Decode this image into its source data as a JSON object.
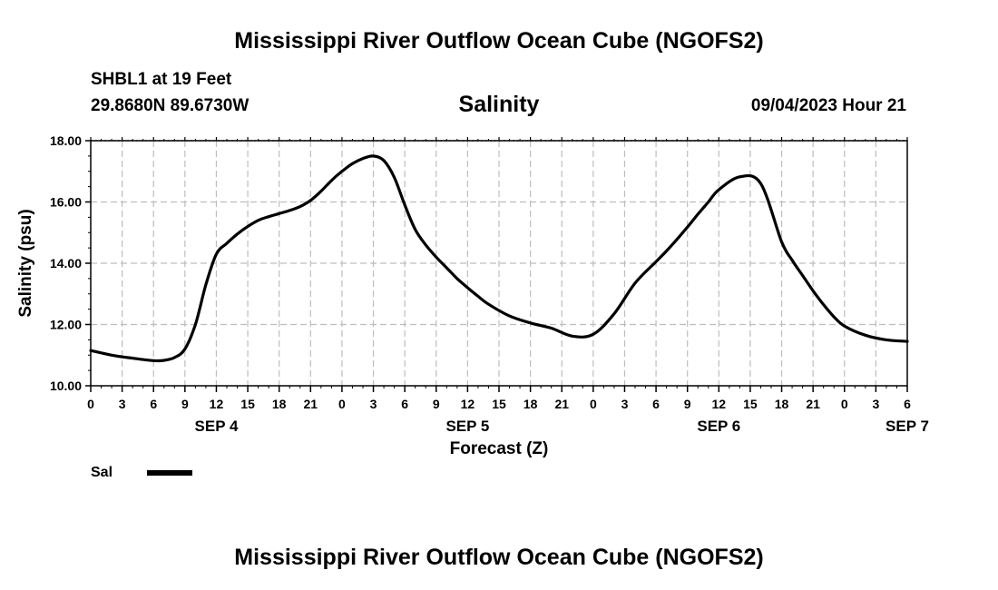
{
  "header": {
    "title": "Mississippi River Outflow Ocean Cube (NGOFS2)",
    "station": "SHBL1 at 19 Feet",
    "coords": "29.8680N  89.6730W",
    "subtitle": "Salinity",
    "datetime": "09/04/2023 Hour 21"
  },
  "footer": {
    "title": "Mississippi River Outflow Ocean Cube (NGOFS2)"
  },
  "chart_data": {
    "type": "line",
    "title": "Salinity",
    "xlabel": "Forecast (Z)",
    "ylabel": "Salinity (psu)",
    "ylim": [
      10,
      18
    ],
    "xlim": [
      0,
      78
    ],
    "x_unit": "hours from 09/04 00Z",
    "y_tick_labels": [
      "10.00",
      "12.00",
      "14.00",
      "16.00",
      "18.00"
    ],
    "x_tick_labels": [
      "0",
      "3",
      "6",
      "9",
      "12",
      "15",
      "18",
      "21",
      "0",
      "3",
      "6",
      "9",
      "12",
      "15",
      "18",
      "21",
      "0",
      "3",
      "6",
      "9",
      "12",
      "15",
      "18",
      "21",
      "0",
      "3",
      "6"
    ],
    "day_labels": [
      {
        "label": "SEP 4",
        "hour": 12
      },
      {
        "label": "SEP 5",
        "hour": 36
      },
      {
        "label": "SEP 6",
        "hour": 60
      },
      {
        "label": "SEP 7",
        "hour": 78
      }
    ],
    "grid": true,
    "legend": [
      {
        "name": "Sal",
        "color": "#000000"
      }
    ],
    "series": [
      {
        "name": "Sal",
        "x": [
          0,
          2,
          4,
          6,
          7,
          8,
          9,
          10,
          11,
          12,
          13,
          14,
          15,
          16,
          17,
          18,
          19,
          20,
          21,
          22,
          23,
          24,
          25,
          26,
          27,
          28,
          29,
          30,
          31,
          32,
          33,
          34,
          35,
          36,
          37,
          38,
          40,
          42,
          44,
          46,
          48,
          50,
          52,
          54,
          55,
          56,
          57,
          58,
          59,
          60,
          62,
          64,
          66,
          67,
          68,
          69,
          70,
          71,
          72,
          74,
          76,
          78
        ],
        "y": [
          11.15,
          11.0,
          10.9,
          10.82,
          10.83,
          10.92,
          11.2,
          12.0,
          13.3,
          14.3,
          14.65,
          14.95,
          15.2,
          15.4,
          15.52,
          15.62,
          15.72,
          15.85,
          16.05,
          16.35,
          16.7,
          17.0,
          17.25,
          17.42,
          17.5,
          17.35,
          16.8,
          15.9,
          15.1,
          14.6,
          14.2,
          13.85,
          13.5,
          13.2,
          12.92,
          12.66,
          12.28,
          12.05,
          11.88,
          11.62,
          11.68,
          12.35,
          13.35,
          14.05,
          14.4,
          14.78,
          15.18,
          15.6,
          16.0,
          16.4,
          16.82,
          16.6,
          14.7,
          14.1,
          13.6,
          13.1,
          12.65,
          12.25,
          11.95,
          11.65,
          11.5,
          11.45
        ]
      }
    ],
    "line_color": "#000000"
  }
}
